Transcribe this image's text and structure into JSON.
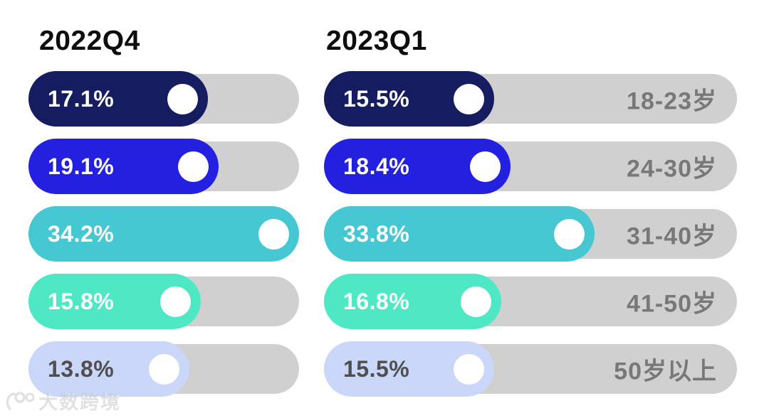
{
  "watermark": {
    "text": "大数跨境",
    "icon": "100-badge-logo"
  },
  "chart_data": {
    "type": "bar",
    "orientation": "horizontal",
    "title": "",
    "group_headers": [
      "2022Q4",
      "2023Q1"
    ],
    "categories": [
      "18-23岁",
      "24-30岁",
      "31-40岁",
      "41-50岁",
      "50岁以上"
    ],
    "series": [
      {
        "name": "2022Q4",
        "values": [
          17.1,
          19.1,
          34.2,
          15.8,
          13.8
        ],
        "labels": [
          "17.1%",
          "19.1%",
          "34.2%",
          "15.8%",
          "13.8%"
        ]
      },
      {
        "name": "2023Q1",
        "values": [
          15.5,
          18.4,
          33.8,
          16.8,
          15.5
        ],
        "labels": [
          "15.5%",
          "18.4%",
          "33.8%",
          "16.8%",
          "15.5%"
        ]
      }
    ],
    "row_colors": [
      "#161c60",
      "#2320e0",
      "#46c8d2",
      "#4ee9c4",
      "#cad7f9"
    ],
    "row_value_text_colors": [
      "#ffffff",
      "#ffffff",
      "#ffffff",
      "#ffffff",
      "#4f4f4f"
    ],
    "track_color": "#d0d0d0",
    "category_label_color": "#787878",
    "legend_position": "top-as-column-headers",
    "grid": false
  }
}
